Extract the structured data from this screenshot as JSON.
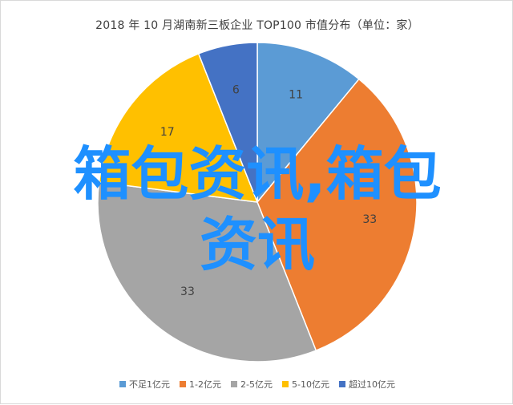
{
  "chart_data": {
    "type": "pie",
    "title": "2018 年 10 月湖南新三板企业 TOP100 市值分布（单位：家）",
    "categories": [
      "不足1亿元",
      "1-2亿元",
      "2-5亿元",
      "5-10亿元",
      "超过10亿元"
    ],
    "values": [
      11,
      33,
      33,
      17,
      6
    ],
    "colors": [
      "#5b9bd5",
      "#ed7d31",
      "#a5a5a5",
      "#ffc000",
      "#4472c4"
    ],
    "legend_position": "bottom",
    "start_angle": "12 o'clock",
    "direction": "clockwise"
  },
  "overlay": {
    "line1": "箱包资讯,箱包",
    "line2": "资讯"
  }
}
